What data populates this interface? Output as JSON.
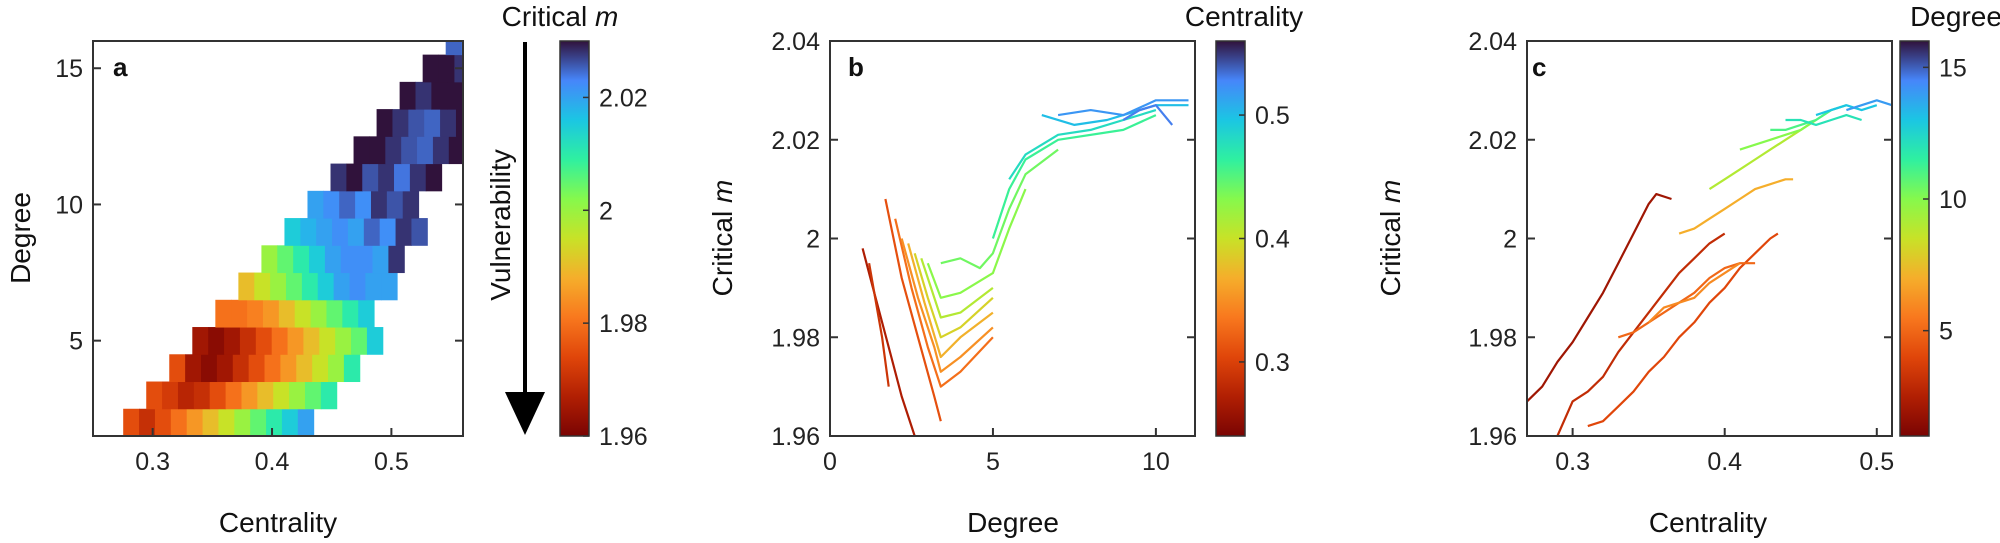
{
  "chart_data": [
    {
      "panel": "a",
      "type": "heatmap",
      "xlabel": "Centrality",
      "ylabel": "Degree",
      "xlim": [
        0.25,
        0.56
      ],
      "ylim": [
        1.5,
        16
      ],
      "xticks": [
        "0.3",
        "0.4",
        "0.5"
      ],
      "xtick_values": [
        0.3,
        0.4,
        0.5
      ],
      "yticks": [
        "5",
        "10",
        "15"
      ],
      "ytick_values": [
        5,
        10,
        15
      ],
      "colorbar": {
        "label_prefix": "Critical ",
        "label_var": "m",
        "range": [
          1.96,
          2.03
        ],
        "ticks": [
          "2.02",
          "2",
          "1.98",
          "1.96"
        ],
        "tick_values": [
          2.02,
          2.0,
          1.98,
          1.96
        ]
      },
      "annotation": "Vulnerability",
      "rows": [
        {
          "degree": 1,
          "cells": [
            1.975,
            1.985,
            1.99,
            2.0,
            2.01,
            2.02,
            2.02
          ]
        },
        {
          "degree": 2,
          "cells": [
            1.975,
            1.97,
            1.975,
            1.98,
            1.985,
            1.99,
            1.995,
            2.0,
            2.005,
            2.01,
            2.015,
            2.02
          ]
        },
        {
          "degree": 3,
          "cells": [
            1.975,
            1.972,
            1.968,
            1.97,
            1.975,
            1.98,
            1.985,
            1.99,
            1.995,
            2.0,
            2.005,
            2.01
          ]
        },
        {
          "degree": 4,
          "cells": [
            1.975,
            1.965,
            1.962,
            1.965,
            1.97,
            1.975,
            1.98,
            1.985,
            1.99,
            1.995,
            2.0,
            2.01
          ]
        },
        {
          "degree": 5,
          "cells": [
            1.965,
            1.962,
            1.965,
            1.97,
            1.975,
            1.98,
            1.985,
            1.99,
            1.995,
            2.0,
            2.005,
            2.015
          ]
        },
        {
          "degree": 6,
          "cells": [
            1.98,
            1.98,
            1.982,
            1.985,
            1.99,
            1.995,
            2.0,
            2.005,
            2.01,
            2.015
          ]
        },
        {
          "degree": 7,
          "cells": [
            1.99,
            1.995,
            2.0,
            2.005,
            2.01,
            2.015,
            2.02,
            2.022,
            2.02,
            2.02
          ]
        },
        {
          "degree": 8,
          "cells": [
            2.0,
            2.005,
            2.01,
            2.015,
            2.02,
            2.022,
            2.022,
            2.02,
            2.028
          ]
        },
        {
          "degree": 9,
          "cells": [
            2.015,
            2.018,
            2.02,
            2.022,
            2.02,
            2.025,
            2.022,
            2.028,
            2.026
          ]
        },
        {
          "degree": 10,
          "cells": [
            2.02,
            2.022,
            2.025,
            2.022,
            2.028,
            2.026,
            2.028
          ]
        },
        {
          "degree": 11,
          "cells": [
            2.028,
            2.03,
            2.026,
            2.028,
            2.024,
            2.028,
            2.03
          ]
        },
        {
          "degree": 12,
          "cells": [
            2.03,
            2.03,
            2.028,
            2.026,
            2.025,
            2.028,
            2.03
          ]
        },
        {
          "degree": 13,
          "cells": [
            2.03,
            2.028,
            2.026,
            2.025,
            2.028,
            2.03
          ]
        },
        {
          "degree": 14,
          "cells": [
            2.03,
            2.028,
            2.03,
            2.03,
            2.028
          ]
        },
        {
          "degree": 15,
          "cells": [
            2.03,
            2.03,
            2.028,
            2.03,
            2.028
          ]
        },
        {
          "degree": 16,
          "cells": [
            2.025,
            2.024,
            2.026,
            2.028
          ]
        }
      ]
    },
    {
      "panel": "b",
      "type": "line",
      "xlabel": "Degree",
      "ylabel_prefix": "Critical ",
      "ylabel_var": "m",
      "xlim": [
        0,
        11.2
      ],
      "ylim": [
        1.96,
        2.04
      ],
      "xticks": [
        "0",
        "5",
        "10"
      ],
      "xtick_values": [
        0,
        5,
        10
      ],
      "yticks": [
        "2.04",
        "2.02",
        "2",
        "1.98",
        "1.96"
      ],
      "ytick_values": [
        2.04,
        2.02,
        2.0,
        1.98,
        1.96
      ],
      "colorbar": {
        "label": "Centrality",
        "range": [
          0.24,
          0.56
        ],
        "ticks": [
          "0.5",
          "0.4",
          "0.3"
        ],
        "tick_values": [
          0.5,
          0.4,
          0.3
        ]
      },
      "series": [
        {
          "centrality": 0.27,
          "x": [
            1,
            1.4,
            1.8,
            2.2,
            2.6
          ],
          "y": [
            1.998,
            1.988,
            1.978,
            1.968,
            1.96
          ]
        },
        {
          "centrality": 0.29,
          "x": [
            1.2,
            1.6,
            1.8
          ],
          "y": [
            1.995,
            1.98,
            1.97
          ]
        },
        {
          "centrality": 0.31,
          "x": [
            1.7,
            2.2,
            2.7,
            3.2,
            3.4
          ],
          "y": [
            2.008,
            1.992,
            1.98,
            1.968,
            1.963
          ]
        },
        {
          "centrality": 0.33,
          "x": [
            2.0,
            2.5,
            3.0,
            3.4,
            4.0,
            5.0
          ],
          "y": [
            2.004,
            1.99,
            1.978,
            1.97,
            1.973,
            1.98
          ]
        },
        {
          "centrality": 0.35,
          "x": [
            2.2,
            2.7,
            3.2,
            3.4,
            4.0,
            5.0
          ],
          "y": [
            2.0,
            1.988,
            1.978,
            1.973,
            1.976,
            1.982
          ]
        },
        {
          "centrality": 0.37,
          "x": [
            2.4,
            2.9,
            3.4,
            4.0,
            5.0
          ],
          "y": [
            1.999,
            1.987,
            1.976,
            1.98,
            1.985
          ]
        },
        {
          "centrality": 0.39,
          "x": [
            2.6,
            3.0,
            3.4,
            4.0,
            5.0
          ],
          "y": [
            1.997,
            1.988,
            1.98,
            1.982,
            1.988
          ]
        },
        {
          "centrality": 0.41,
          "x": [
            2.8,
            3.4,
            4.0,
            5.0
          ],
          "y": [
            1.996,
            1.984,
            1.985,
            1.99
          ]
        },
        {
          "centrality": 0.43,
          "x": [
            3.0,
            3.4,
            4.0,
            5.0,
            5.5,
            6.0
          ],
          "y": [
            1.995,
            1.988,
            1.989,
            1.993,
            2.002,
            2.01
          ]
        },
        {
          "centrality": 0.44,
          "x": [
            3.4,
            4.0,
            4.6,
            5.0,
            5.5,
            6.0,
            7.0
          ],
          "y": [
            1.995,
            1.996,
            1.994,
            1.997,
            2.006,
            2.013,
            2.018
          ]
        },
        {
          "centrality": 0.46,
          "x": [
            5.0,
            5.5,
            6.0,
            7.0,
            9.0,
            10.0
          ],
          "y": [
            2.0,
            2.01,
            2.016,
            2.02,
            2.022,
            2.025
          ]
        },
        {
          "centrality": 0.48,
          "x": [
            5.5,
            6.0,
            7.0,
            8.0,
            9.0,
            10.0
          ],
          "y": [
            2.012,
            2.017,
            2.021,
            2.022,
            2.024,
            2.026
          ]
        },
        {
          "centrality": 0.5,
          "x": [
            6.5,
            7.5,
            8.5,
            9.0,
            10.0,
            11.0
          ],
          "y": [
            2.025,
            2.023,
            2.024,
            2.025,
            2.027,
            2.027
          ]
        },
        {
          "centrality": 0.52,
          "x": [
            7.0,
            8.0,
            9.0,
            10.0,
            11.0
          ],
          "y": [
            2.025,
            2.026,
            2.025,
            2.028,
            2.028
          ]
        },
        {
          "centrality": 0.53,
          "x": [
            9.0,
            9.5,
            10.0,
            10.5
          ],
          "y": [
            2.024,
            2.026,
            2.027,
            2.023
          ]
        }
      ]
    },
    {
      "panel": "c",
      "type": "line",
      "xlabel": "Centrality",
      "ylabel_prefix": "Critical ",
      "ylabel_var": "m",
      "xlim": [
        0.27,
        0.51
      ],
      "ylim": [
        1.96,
        2.04
      ],
      "xticks": [
        "0.3",
        "0.4",
        "0.5"
      ],
      "xtick_values": [
        0.3,
        0.4,
        0.5
      ],
      "yticks": [
        "2.04",
        "2.02",
        "2",
        "1.98",
        "1.96"
      ],
      "ytick_values": [
        2.04,
        2.02,
        2.0,
        1.98,
        1.96
      ],
      "colorbar": {
        "label": "Degree",
        "range": [
          1,
          16
        ],
        "ticks": [
          "15",
          "10",
          "5"
        ],
        "tick_values": [
          15,
          10,
          5
        ]
      },
      "series": [
        {
          "degree": 2,
          "x": [
            0.27,
            0.28,
            0.29,
            0.3,
            0.31,
            0.32,
            0.33,
            0.34,
            0.35,
            0.355,
            0.365
          ],
          "y": [
            1.967,
            1.97,
            1.975,
            1.979,
            1.984,
            1.989,
            1.995,
            2.001,
            2.007,
            2.009,
            2.008
          ]
        },
        {
          "degree": 3,
          "x": [
            0.29,
            0.3,
            0.31,
            0.32,
            0.33,
            0.34,
            0.35,
            0.36,
            0.37,
            0.38,
            0.39,
            0.4
          ],
          "y": [
            1.96,
            1.967,
            1.969,
            1.972,
            1.977,
            1.981,
            1.985,
            1.989,
            1.993,
            1.996,
            1.999,
            2.001
          ]
        },
        {
          "degree": 4,
          "x": [
            0.31,
            0.32,
            0.33,
            0.34,
            0.35,
            0.36,
            0.37,
            0.38,
            0.39,
            0.4,
            0.41,
            0.42,
            0.43,
            0.435
          ],
          "y": [
            1.962,
            1.963,
            1.966,
            1.969,
            1.973,
            1.976,
            1.98,
            1.983,
            1.987,
            1.99,
            1.994,
            1.997,
            2.0,
            2.001
          ]
        },
        {
          "degree": 5,
          "x": [
            0.33,
            0.34,
            0.35,
            0.36,
            0.37,
            0.38,
            0.39,
            0.4,
            0.41,
            0.42
          ],
          "y": [
            1.98,
            1.981,
            1.983,
            1.985,
            1.987,
            1.989,
            1.992,
            1.994,
            1.995,
            1.995
          ]
        },
        {
          "degree": 6,
          "x": [
            0.35,
            0.36,
            0.37,
            0.38,
            0.39,
            0.4,
            0.41
          ],
          "y": [
            1.983,
            1.986,
            1.987,
            1.988,
            1.991,
            1.993,
            1.995
          ]
        },
        {
          "degree": 7,
          "x": [
            0.37,
            0.38,
            0.39,
            0.4,
            0.41,
            0.42,
            0.43,
            0.44,
            0.445
          ],
          "y": [
            2.001,
            2.002,
            2.004,
            2.006,
            2.008,
            2.01,
            2.011,
            2.012,
            2.012
          ]
        },
        {
          "degree": 9,
          "x": [
            0.39,
            0.4,
            0.41,
            0.42,
            0.43,
            0.44,
            0.45,
            0.46
          ],
          "y": [
            2.01,
            2.012,
            2.014,
            2.016,
            2.018,
            2.02,
            2.022,
            2.024
          ]
        },
        {
          "degree": 10,
          "x": [
            0.41,
            0.42,
            0.43,
            0.44,
            0.45,
            0.46,
            0.47
          ],
          "y": [
            2.018,
            2.019,
            2.02,
            2.021,
            2.022,
            2.024,
            2.026
          ]
        },
        {
          "degree": 11,
          "x": [
            0.43,
            0.44,
            0.45,
            0.46,
            0.47,
            0.48
          ],
          "y": [
            2.022,
            2.022,
            2.023,
            2.024,
            2.026,
            2.027
          ]
        },
        {
          "degree": 12,
          "x": [
            0.44,
            0.45,
            0.46,
            0.47,
            0.48,
            0.49
          ],
          "y": [
            2.024,
            2.024,
            2.023,
            2.024,
            2.025,
            2.024
          ]
        },
        {
          "degree": 13,
          "x": [
            0.46,
            0.47,
            0.48,
            0.49,
            0.5
          ],
          "y": [
            2.025,
            2.026,
            2.027,
            2.026,
            2.027
          ]
        },
        {
          "degree": 14,
          "x": [
            0.48,
            0.49,
            0.5,
            0.51
          ],
          "y": [
            2.026,
            2.027,
            2.028,
            2.027
          ]
        }
      ]
    }
  ]
}
